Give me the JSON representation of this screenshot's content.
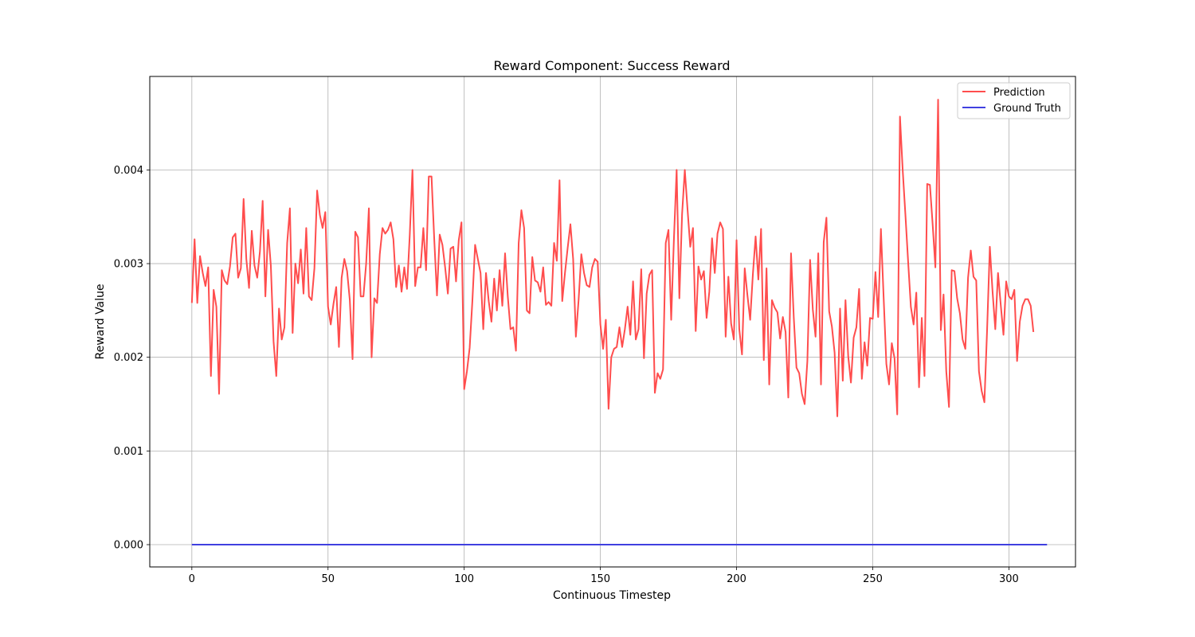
{
  "chart_data": {
    "type": "line",
    "title": "Reward Component: Success Reward",
    "xlabel": "Continuous Timestep",
    "ylabel": "Reward Value",
    "xlim": [
      -15.45,
      324.45
    ],
    "ylim": [
      -0.000238,
      0.004998
    ],
    "xticks": [
      0,
      50,
      100,
      150,
      200,
      250,
      300
    ],
    "xtick_labels": [
      "0",
      "50",
      "100",
      "150",
      "200",
      "250",
      "300"
    ],
    "yticks": [
      0.0,
      0.001,
      0.002,
      0.003,
      0.004
    ],
    "ytick_labels": [
      "0.000",
      "0.001",
      "0.002",
      "0.003",
      "0.004"
    ],
    "grid": true,
    "legend_position": "top-right",
    "series": [
      {
        "name": "Prediction",
        "color": "#ff4d4d",
        "x_start": 0,
        "x_step": 1,
        "values": [
          0.00258,
          0.00326,
          0.00258,
          0.00308,
          0.0029,
          0.00276,
          0.00296,
          0.0018,
          0.00272,
          0.00254,
          0.00161,
          0.00293,
          0.00282,
          0.00278,
          0.00297,
          0.00328,
          0.00332,
          0.00285,
          0.00295,
          0.00369,
          0.00305,
          0.00274,
          0.00335,
          0.00298,
          0.00285,
          0.00313,
          0.00367,
          0.00265,
          0.00336,
          0.00298,
          0.00217,
          0.0018,
          0.00252,
          0.00219,
          0.00232,
          0.00322,
          0.00359,
          0.00226,
          0.003,
          0.00279,
          0.00315,
          0.00268,
          0.00338,
          0.00265,
          0.00261,
          0.00295,
          0.00378,
          0.00352,
          0.00338,
          0.00355,
          0.00254,
          0.00235,
          0.00257,
          0.00275,
          0.00211,
          0.00285,
          0.00305,
          0.00292,
          0.00261,
          0.00198,
          0.00334,
          0.00328,
          0.00265,
          0.00265,
          0.003,
          0.00359,
          0.002,
          0.00263,
          0.00258,
          0.0031,
          0.00338,
          0.00332,
          0.00336,
          0.00344,
          0.00326,
          0.00275,
          0.00298,
          0.0027,
          0.00296,
          0.00273,
          0.0033,
          0.004,
          0.00276,
          0.00296,
          0.00296,
          0.00338,
          0.00293,
          0.00393,
          0.00393,
          0.00326,
          0.00266,
          0.00331,
          0.0032,
          0.00296,
          0.00268,
          0.00316,
          0.00318,
          0.00281,
          0.00325,
          0.00344,
          0.00166,
          0.00185,
          0.0021,
          0.0026,
          0.0032,
          0.00305,
          0.0029,
          0.0023,
          0.0029,
          0.0026,
          0.00238,
          0.00284,
          0.0025,
          0.00293,
          0.00255,
          0.00311,
          0.00265,
          0.0023,
          0.00232,
          0.00207,
          0.00322,
          0.00357,
          0.00338,
          0.0025,
          0.00247,
          0.00307,
          0.00282,
          0.0028,
          0.0027,
          0.00296,
          0.00256,
          0.00259,
          0.00255,
          0.00322,
          0.00303,
          0.00389,
          0.0026,
          0.0029,
          0.00317,
          0.00342,
          0.00305,
          0.00222,
          0.00261,
          0.0031,
          0.0029,
          0.00277,
          0.00275,
          0.00296,
          0.00305,
          0.00302,
          0.00235,
          0.00209,
          0.0024,
          0.00145,
          0.002,
          0.00209,
          0.00211,
          0.00232,
          0.00211,
          0.0023,
          0.00254,
          0.00224,
          0.00281,
          0.00219,
          0.0023,
          0.00294,
          0.00199,
          0.00268,
          0.00288,
          0.00293,
          0.00162,
          0.00183,
          0.00177,
          0.00187,
          0.00322,
          0.00336,
          0.0024,
          0.00326,
          0.004,
          0.00263,
          0.00353,
          0.004,
          0.00358,
          0.00318,
          0.00338,
          0.00228,
          0.00297,
          0.00283,
          0.00292,
          0.00242,
          0.0027,
          0.00327,
          0.0029,
          0.00332,
          0.00344,
          0.00337,
          0.00222,
          0.00286,
          0.00236,
          0.00219,
          0.00325,
          0.0023,
          0.00203,
          0.00295,
          0.00266,
          0.0024,
          0.00289,
          0.00329,
          0.00283,
          0.00337,
          0.00197,
          0.00295,
          0.00171,
          0.00261,
          0.00253,
          0.00248,
          0.0022,
          0.00243,
          0.00227,
          0.00157,
          0.00311,
          0.00243,
          0.00189,
          0.00183,
          0.00161,
          0.0015,
          0.00196,
          0.00304,
          0.00251,
          0.00222,
          0.00311,
          0.00171,
          0.00323,
          0.00349,
          0.00249,
          0.00233,
          0.00205,
          0.00137,
          0.00252,
          0.00175,
          0.00261,
          0.00201,
          0.00173,
          0.00221,
          0.00232,
          0.00273,
          0.00177,
          0.00216,
          0.00191,
          0.00242,
          0.00241,
          0.00291,
          0.00243,
          0.00337,
          0.00264,
          0.00193,
          0.00171,
          0.00215,
          0.00199,
          0.00139,
          0.00457,
          0.004,
          0.00352,
          0.00302,
          0.00254,
          0.00235,
          0.00269,
          0.00168,
          0.00242,
          0.0018,
          0.00385,
          0.00384,
          0.00342,
          0.00296,
          0.00475,
          0.00229,
          0.00267,
          0.00185,
          0.00147,
          0.00293,
          0.00292,
          0.00263,
          0.00247,
          0.00219,
          0.00209,
          0.00285,
          0.00314,
          0.00286,
          0.00282,
          0.00185,
          0.00164,
          0.00152,
          0.0023,
          0.00318,
          0.0027,
          0.0023,
          0.0029,
          0.00256,
          0.00224,
          0.00281,
          0.00265,
          0.00262,
          0.00272,
          0.00196,
          0.00238,
          0.00255,
          0.00262,
          0.00262,
          0.00255,
          0.00227
        ]
      },
      {
        "name": "Ground Truth",
        "color": "#4040e0",
        "x_start": 0,
        "x_step": 1,
        "values": [
          0.0,
          0.0,
          0.0,
          0.0,
          0.0,
          0.0,
          0.0,
          0.0,
          0.0,
          0.0,
          0.0,
          0.0,
          0.0,
          0.0,
          0.0,
          0.0,
          0.0,
          0.0,
          0.0,
          0.0,
          0.0,
          0.0,
          0.0,
          0.0,
          0.0,
          0.0,
          0.0,
          0.0,
          0.0,
          0.0,
          0.0,
          0.0,
          0.0,
          0.0,
          0.0,
          0.0,
          0.0,
          0.0,
          0.0,
          0.0,
          0.0,
          0.0,
          0.0,
          0.0,
          0.0,
          0.0,
          0.0,
          0.0,
          0.0,
          0.0,
          0.0,
          0.0,
          0.0,
          0.0,
          0.0,
          0.0,
          0.0,
          0.0,
          0.0,
          0.0,
          0.0,
          0.0,
          0.0,
          0.0,
          0.0,
          0.0,
          0.0,
          0.0,
          0.0,
          0.0,
          0.0,
          0.0,
          0.0,
          0.0,
          0.0,
          0.0,
          0.0,
          0.0,
          0.0,
          0.0,
          0.0,
          0.0,
          0.0,
          0.0,
          0.0,
          0.0,
          0.0,
          0.0,
          0.0,
          0.0,
          0.0,
          0.0,
          0.0,
          0.0,
          0.0,
          0.0,
          0.0,
          0.0,
          0.0,
          0.0,
          0.0,
          0.0,
          0.0,
          0.0,
          0.0,
          0.0,
          0.0,
          0.0,
          0.0,
          0.0,
          0.0,
          0.0,
          0.0,
          0.0,
          0.0,
          0.0,
          0.0,
          0.0,
          0.0,
          0.0,
          0.0,
          0.0,
          0.0,
          0.0,
          0.0,
          0.0,
          0.0,
          0.0,
          0.0,
          0.0,
          0.0,
          0.0,
          0.0,
          0.0,
          0.0,
          0.0,
          0.0,
          0.0,
          0.0,
          0.0,
          0.0,
          0.0,
          0.0,
          0.0,
          0.0,
          0.0,
          0.0,
          0.0,
          0.0,
          0.0,
          0.0,
          0.0,
          0.0,
          0.0,
          0.0,
          0.0,
          0.0,
          0.0,
          0.0,
          0.0,
          0.0,
          0.0,
          0.0,
          0.0,
          0.0,
          0.0,
          0.0,
          0.0,
          0.0,
          0.0,
          0.0,
          0.0,
          0.0,
          0.0,
          0.0,
          0.0,
          0.0,
          0.0,
          0.0,
          0.0,
          0.0,
          0.0,
          0.0,
          0.0,
          0.0,
          0.0,
          0.0,
          0.0,
          0.0,
          0.0,
          0.0,
          0.0,
          0.0,
          0.0,
          0.0,
          0.0,
          0.0,
          0.0,
          0.0,
          0.0,
          0.0,
          0.0,
          0.0,
          0.0,
          0.0,
          0.0,
          0.0,
          0.0,
          0.0,
          0.0,
          0.0,
          0.0,
          0.0,
          0.0,
          0.0,
          0.0,
          0.0,
          0.0,
          0.0,
          0.0,
          0.0,
          0.0,
          0.0,
          0.0,
          0.0,
          0.0,
          0.0,
          0.0,
          0.0,
          0.0,
          0.0,
          0.0,
          0.0,
          0.0,
          0.0,
          0.0,
          0.0,
          0.0,
          0.0,
          0.0,
          0.0,
          0.0,
          0.0,
          0.0,
          0.0,
          0.0,
          0.0,
          0.0,
          0.0,
          0.0,
          0.0,
          0.0,
          0.0,
          0.0,
          0.0,
          0.0,
          0.0,
          0.0,
          0.0,
          0.0,
          0.0,
          0.0,
          0.0,
          0.0,
          0.0,
          0.0,
          0.0,
          0.0,
          0.0,
          0.0,
          0.0,
          0.0,
          0.0,
          0.0,
          0.0,
          0.0,
          0.0,
          0.0,
          0.0,
          0.0,
          0.0,
          0.0,
          0.0,
          0.0,
          0.0,
          0.0,
          0.0,
          0.0,
          0.0,
          0.0,
          0.0,
          0.0,
          0.0,
          0.0,
          0.0,
          0.0,
          0.0,
          0.0,
          0.0,
          0.0,
          0.0,
          0.0,
          0.0,
          0.0,
          0.0,
          0.0,
          0.0,
          0.0,
          0.0,
          0.0,
          0.0,
          0.0,
          0.0,
          0.0,
          0.0
        ]
      }
    ]
  }
}
